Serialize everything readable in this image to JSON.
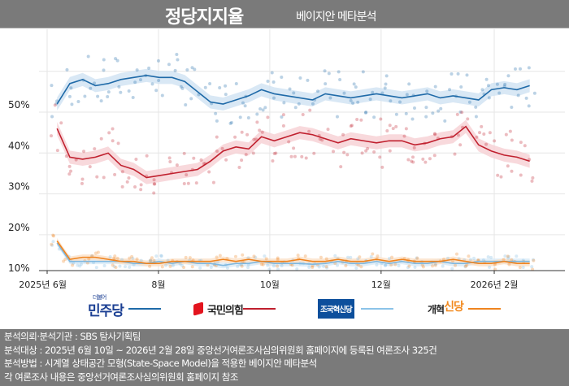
{
  "header": {
    "title": "정당지지율",
    "subtitle": "베이지안 메타분석"
  },
  "chart_data": {
    "type": "line",
    "title": "정당지지율",
    "subtitle": "베이지안 메타분석",
    "y_ticks": [
      "50%",
      "40%",
      "30%",
      "20%",
      "10%"
    ],
    "y_tick_values": [
      50,
      40,
      30,
      20,
      10
    ],
    "x_ticks": [
      "2025년 6월",
      "8월",
      "10월",
      "12월",
      "2026년 2월"
    ],
    "x_tick_dates": [
      "2025-06-01",
      "2025-08-01",
      "2025-10-01",
      "2025-12-01",
      "2026-02-01"
    ],
    "ylim": [
      9,
      62
    ],
    "grid": true,
    "legend_position": "bottom",
    "x": [
      "2025-06-10",
      "2025-06-17",
      "2025-06-24",
      "2025-07-01",
      "2025-07-08",
      "2025-07-15",
      "2025-07-22",
      "2025-07-29",
      "2025-08-05",
      "2025-08-12",
      "2025-08-19",
      "2025-08-26",
      "2025-09-02",
      "2025-09-09",
      "2025-09-16",
      "2025-09-23",
      "2025-09-30",
      "2025-10-07",
      "2025-10-14",
      "2025-10-21",
      "2025-10-28",
      "2025-11-04",
      "2025-11-11",
      "2025-11-18",
      "2025-11-25",
      "2025-12-02",
      "2025-12-09",
      "2025-12-16",
      "2025-12-23",
      "2025-12-30",
      "2026-01-06",
      "2026-01-13",
      "2026-01-20",
      "2026-01-27",
      "2026-02-03",
      "2026-02-10",
      "2026-02-17",
      "2026-02-24"
    ],
    "series": [
      {
        "name": "민주당",
        "color": "#1f6aa8",
        "band": "#cfe2f3",
        "values": [
          50,
          55,
          56,
          54.5,
          55,
          56,
          56.5,
          57,
          56.5,
          56.5,
          55.5,
          53,
          50.5,
          50,
          51,
          52,
          53.5,
          52.5,
          52,
          51.5,
          51,
          52.5,
          52,
          51.5,
          52,
          52.5,
          52,
          51.5,
          52,
          52.5,
          51.5,
          52,
          51.5,
          51,
          53.5,
          54,
          53.5,
          54.5
        ]
      },
      {
        "name": "국민의힘",
        "color": "#c0202e",
        "band": "#f6d0d3",
        "values": [
          44,
          37,
          36.5,
          37,
          38,
          35,
          34,
          32,
          32.5,
          33,
          33.5,
          34,
          36,
          38.5,
          39.5,
          39,
          42,
          41,
          42,
          43,
          42.5,
          41.5,
          40.5,
          41.5,
          41,
          40.5,
          41,
          41,
          40,
          40.5,
          41.5,
          42,
          44.5,
          40,
          38.5,
          37.5,
          37,
          36
        ]
      },
      {
        "name": "조국혁신당",
        "color": "#7fb8e0",
        "band": "#d8eaf6",
        "values": [
          16,
          11.5,
          11.5,
          11.5,
          11.5,
          11.5,
          11,
          11,
          11.5,
          11,
          11.5,
          11,
          11,
          10.5,
          11,
          11,
          11.5,
          11,
          11,
          11,
          10.8,
          11,
          11.5,
          11,
          11,
          11.5,
          11,
          11.5,
          11,
          11,
          11.5,
          11,
          11,
          11.5,
          11.5,
          11.5,
          11.5,
          11.5
        ]
      },
      {
        "name": "개혁신당",
        "color": "#ef8420",
        "band": "#fbe0c6",
        "values": [
          16.5,
          12,
          12.5,
          12.5,
          12,
          11.5,
          11.5,
          11,
          11,
          11.5,
          11.5,
          11.5,
          11.5,
          12,
          11.5,
          12,
          11.5,
          11.5,
          11.5,
          12,
          11.5,
          11.5,
          12,
          11.5,
          11.5,
          12,
          11.5,
          12,
          11.5,
          11.5,
          11.5,
          12,
          11.5,
          11,
          11,
          11.5,
          11,
          11
        ]
      }
    ]
  },
  "legend": [
    {
      "label": "민주당",
      "prefix": "더불어",
      "color": "#1f6aa8",
      "logo_color": "#1b3f93"
    },
    {
      "label": "국민의힘",
      "color": "#c0202e",
      "logo_color": "#222"
    },
    {
      "label": "조국혁신당",
      "color": "#7fb8e0",
      "logo_color": "#fff",
      "logo_bg": "#0d4f9c"
    },
    {
      "label_a": "개혁",
      "label_b": "신당",
      "color": "#ef8420",
      "logo_color": "#222",
      "accent": "#f28a1f"
    }
  ],
  "footer": [
    "분석의뢰·분석기관 : SBS 탐사기획팀",
    "분석대상 : 2025년 6월 10일 ~ 2026년 2월 28일 중앙선거여론조사심의위원회 홈페이지에 등록된 여론조사 325건",
    "분석방법 : 시계열 상태공간 모형(State-Space Model)을 적용한 베이지안 메타분석",
    "각 여론조사 내용은 중앙선거여론조사심의위원회 홈페이지 참조"
  ]
}
